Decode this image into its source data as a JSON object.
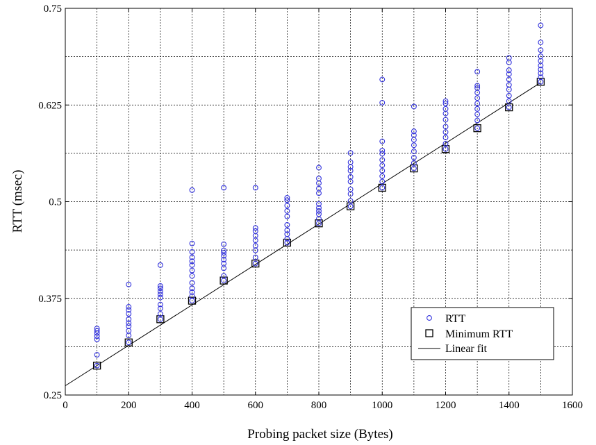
{
  "chart_data": {
    "type": "scatter",
    "title": "",
    "xlabel": "Probing packet size (Bytes)",
    "ylabel": "RTT (msec)",
    "xlim": [
      0,
      1600
    ],
    "ylim": [
      0.25,
      0.75
    ],
    "xticks": [
      0,
      200,
      400,
      600,
      800,
      1000,
      1200,
      1400,
      1600
    ],
    "yticks": [
      0.25,
      0.375,
      0.5,
      0.625,
      0.75
    ],
    "xtick_labels": [
      "0",
      "200",
      "400",
      "600",
      "800",
      "1000",
      "1200",
      "1400",
      "1600"
    ],
    "ytick_labels": [
      "0.25",
      "0.375",
      "0.5",
      "0.625",
      "0.75"
    ],
    "grid": true,
    "legend_position": "bottom-right",
    "colors": {
      "rtt": "#3333dd",
      "minimum": "#000000",
      "fit": "#000000",
      "grid": "#000000"
    },
    "series": [
      {
        "name": "RTT",
        "marker": "circle",
        "x": [
          100,
          200,
          300,
          400,
          500,
          600,
          700,
          800,
          900,
          1000,
          1100,
          1200,
          1300,
          1400,
          1500
        ],
        "points": [
          [
            0.288,
            0.302,
            0.322,
            0.326,
            0.33,
            0.333,
            0.336
          ],
          [
            0.318,
            0.327,
            0.333,
            0.339,
            0.343,
            0.348,
            0.355,
            0.36,
            0.364,
            0.393
          ],
          [
            0.348,
            0.355,
            0.362,
            0.367,
            0.376,
            0.38,
            0.384,
            0.388,
            0.391,
            0.418
          ],
          [
            0.372,
            0.378,
            0.383,
            0.388,
            0.395,
            0.404,
            0.411,
            0.418,
            0.423,
            0.428,
            0.435,
            0.446,
            0.515
          ],
          [
            0.398,
            0.404,
            0.414,
            0.42,
            0.425,
            0.43,
            0.434,
            0.437,
            0.445,
            0.518
          ],
          [
            0.42,
            0.428,
            0.437,
            0.443,
            0.45,
            0.456,
            0.462,
            0.466,
            0.518
          ],
          [
            0.447,
            0.452,
            0.458,
            0.463,
            0.47,
            0.481,
            0.488,
            0.495,
            0.502,
            0.505
          ],
          [
            0.472,
            0.478,
            0.484,
            0.488,
            0.492,
            0.497,
            0.511,
            0.517,
            0.524,
            0.53,
            0.544
          ],
          [
            0.494,
            0.501,
            0.51,
            0.516,
            0.526,
            0.532,
            0.54,
            0.545,
            0.551,
            0.563
          ],
          [
            0.518,
            0.526,
            0.533,
            0.54,
            0.547,
            0.554,
            0.562,
            0.566,
            0.578,
            0.628,
            0.658
          ],
          [
            0.543,
            0.55,
            0.557,
            0.565,
            0.573,
            0.58,
            0.586,
            0.591,
            0.623
          ],
          [
            0.568,
            0.575,
            0.583,
            0.59,
            0.597,
            0.606,
            0.614,
            0.62,
            0.627,
            0.63
          ],
          [
            0.595,
            0.605,
            0.613,
            0.62,
            0.627,
            0.634,
            0.641,
            0.647,
            0.65,
            0.668
          ],
          [
            0.622,
            0.63,
            0.637,
            0.645,
            0.651,
            0.658,
            0.665,
            0.67,
            0.68,
            0.686
          ],
          [
            0.655,
            0.661,
            0.666,
            0.671,
            0.676,
            0.682,
            0.688,
            0.696,
            0.706,
            0.728
          ]
        ]
      },
      {
        "name": "Minimum RTT",
        "marker": "square",
        "x": [
          100,
          200,
          300,
          400,
          500,
          600,
          700,
          800,
          900,
          1000,
          1100,
          1200,
          1300,
          1400,
          1500
        ],
        "y": [
          0.288,
          0.318,
          0.348,
          0.372,
          0.398,
          0.42,
          0.447,
          0.472,
          0.494,
          0.518,
          0.543,
          0.568,
          0.595,
          0.622,
          0.655
        ]
      },
      {
        "name": "Linear fit",
        "marker": "line",
        "x": [
          0,
          1500
        ],
        "y": [
          0.262,
          0.654
        ]
      }
    ]
  }
}
